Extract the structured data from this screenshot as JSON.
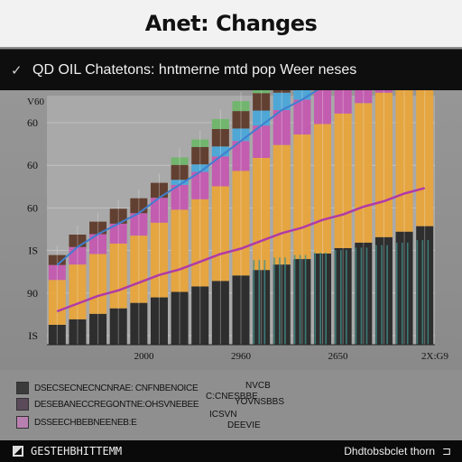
{
  "header": {
    "title": "Anet: Changes",
    "subtitle": "QD OIL Chatetons: hntmerne mtd pop Weer neses",
    "check_icon": "check-icon"
  },
  "chart_data": {
    "type": "bar",
    "title": "Anet: Changes",
    "y_ticks": [
      "60",
      "60",
      "60",
      "IS",
      "90",
      "IS"
    ],
    "y_top_label": "V60",
    "x_ticks": [
      "",
      "2000",
      "2960",
      "2650",
      "2X:G9"
    ],
    "ylim": [
      0,
      100
    ],
    "x": [
      1,
      2,
      3,
      4,
      5,
      6,
      7,
      8,
      9,
      10,
      11,
      12,
      13,
      14,
      15,
      16,
      17,
      18,
      19
    ],
    "series": [
      {
        "name": "",
        "color": "#e8a43a",
        "values": [
          18,
          22,
          24,
          26,
          27,
          30,
          33,
          35,
          38,
          42,
          45,
          48,
          50,
          52,
          54,
          56,
          58,
          60,
          62
        ]
      },
      {
        "name": "",
        "color": "#c458b0",
        "values": [
          6,
          7,
          8,
          8,
          9,
          10,
          10,
          11,
          12,
          12,
          13,
          14,
          14,
          15,
          15,
          16,
          16,
          17,
          17
        ]
      },
      {
        "name": "",
        "color": "#4aa6d8",
        "values": [
          0,
          0,
          0,
          0,
          0,
          0,
          2,
          3,
          4,
          5,
          6,
          7,
          8,
          8,
          9,
          9,
          10,
          10,
          10
        ]
      },
      {
        "name": "",
        "color": "#5e3a2a",
        "values": [
          4,
          5,
          5,
          6,
          6,
          6,
          6,
          7,
          7,
          7,
          7,
          8,
          8,
          8,
          8,
          8,
          8,
          8,
          8
        ]
      },
      {
        "name": "",
        "color": "#6fb56a",
        "values": [
          0,
          0,
          0,
          0,
          0,
          0,
          3,
          3,
          4,
          4,
          5,
          5,
          6,
          6,
          6,
          7,
          7,
          7,
          7
        ]
      }
    ],
    "grid": true,
    "legend_position": "bottom-left"
  },
  "legend": {
    "rows": [
      {
        "color": "#3b3b3b",
        "label": "DSECSECNECNCNRAE: CNFNBENOICE",
        "value": "NVCB"
      },
      {
        "color": "#5a4a5a",
        "label": "DESEBANECCREGONTNE:OHSVNEBEE",
        "value": "YOVNSBBS"
      },
      {
        "color": "#b880b0",
        "label": "DSSEECHBEBNEENEB:E",
        "value": "DEEVIE"
      }
    ],
    "extra_values": [
      "C:CNESBBE",
      "ICSVN"
    ]
  },
  "footer": {
    "left_icon": "chart-icon",
    "left_text": "GESTEHBHITTEMM",
    "right_text": "Dhdtobsbclet thorn",
    "right_icon": "bracket-icon"
  }
}
